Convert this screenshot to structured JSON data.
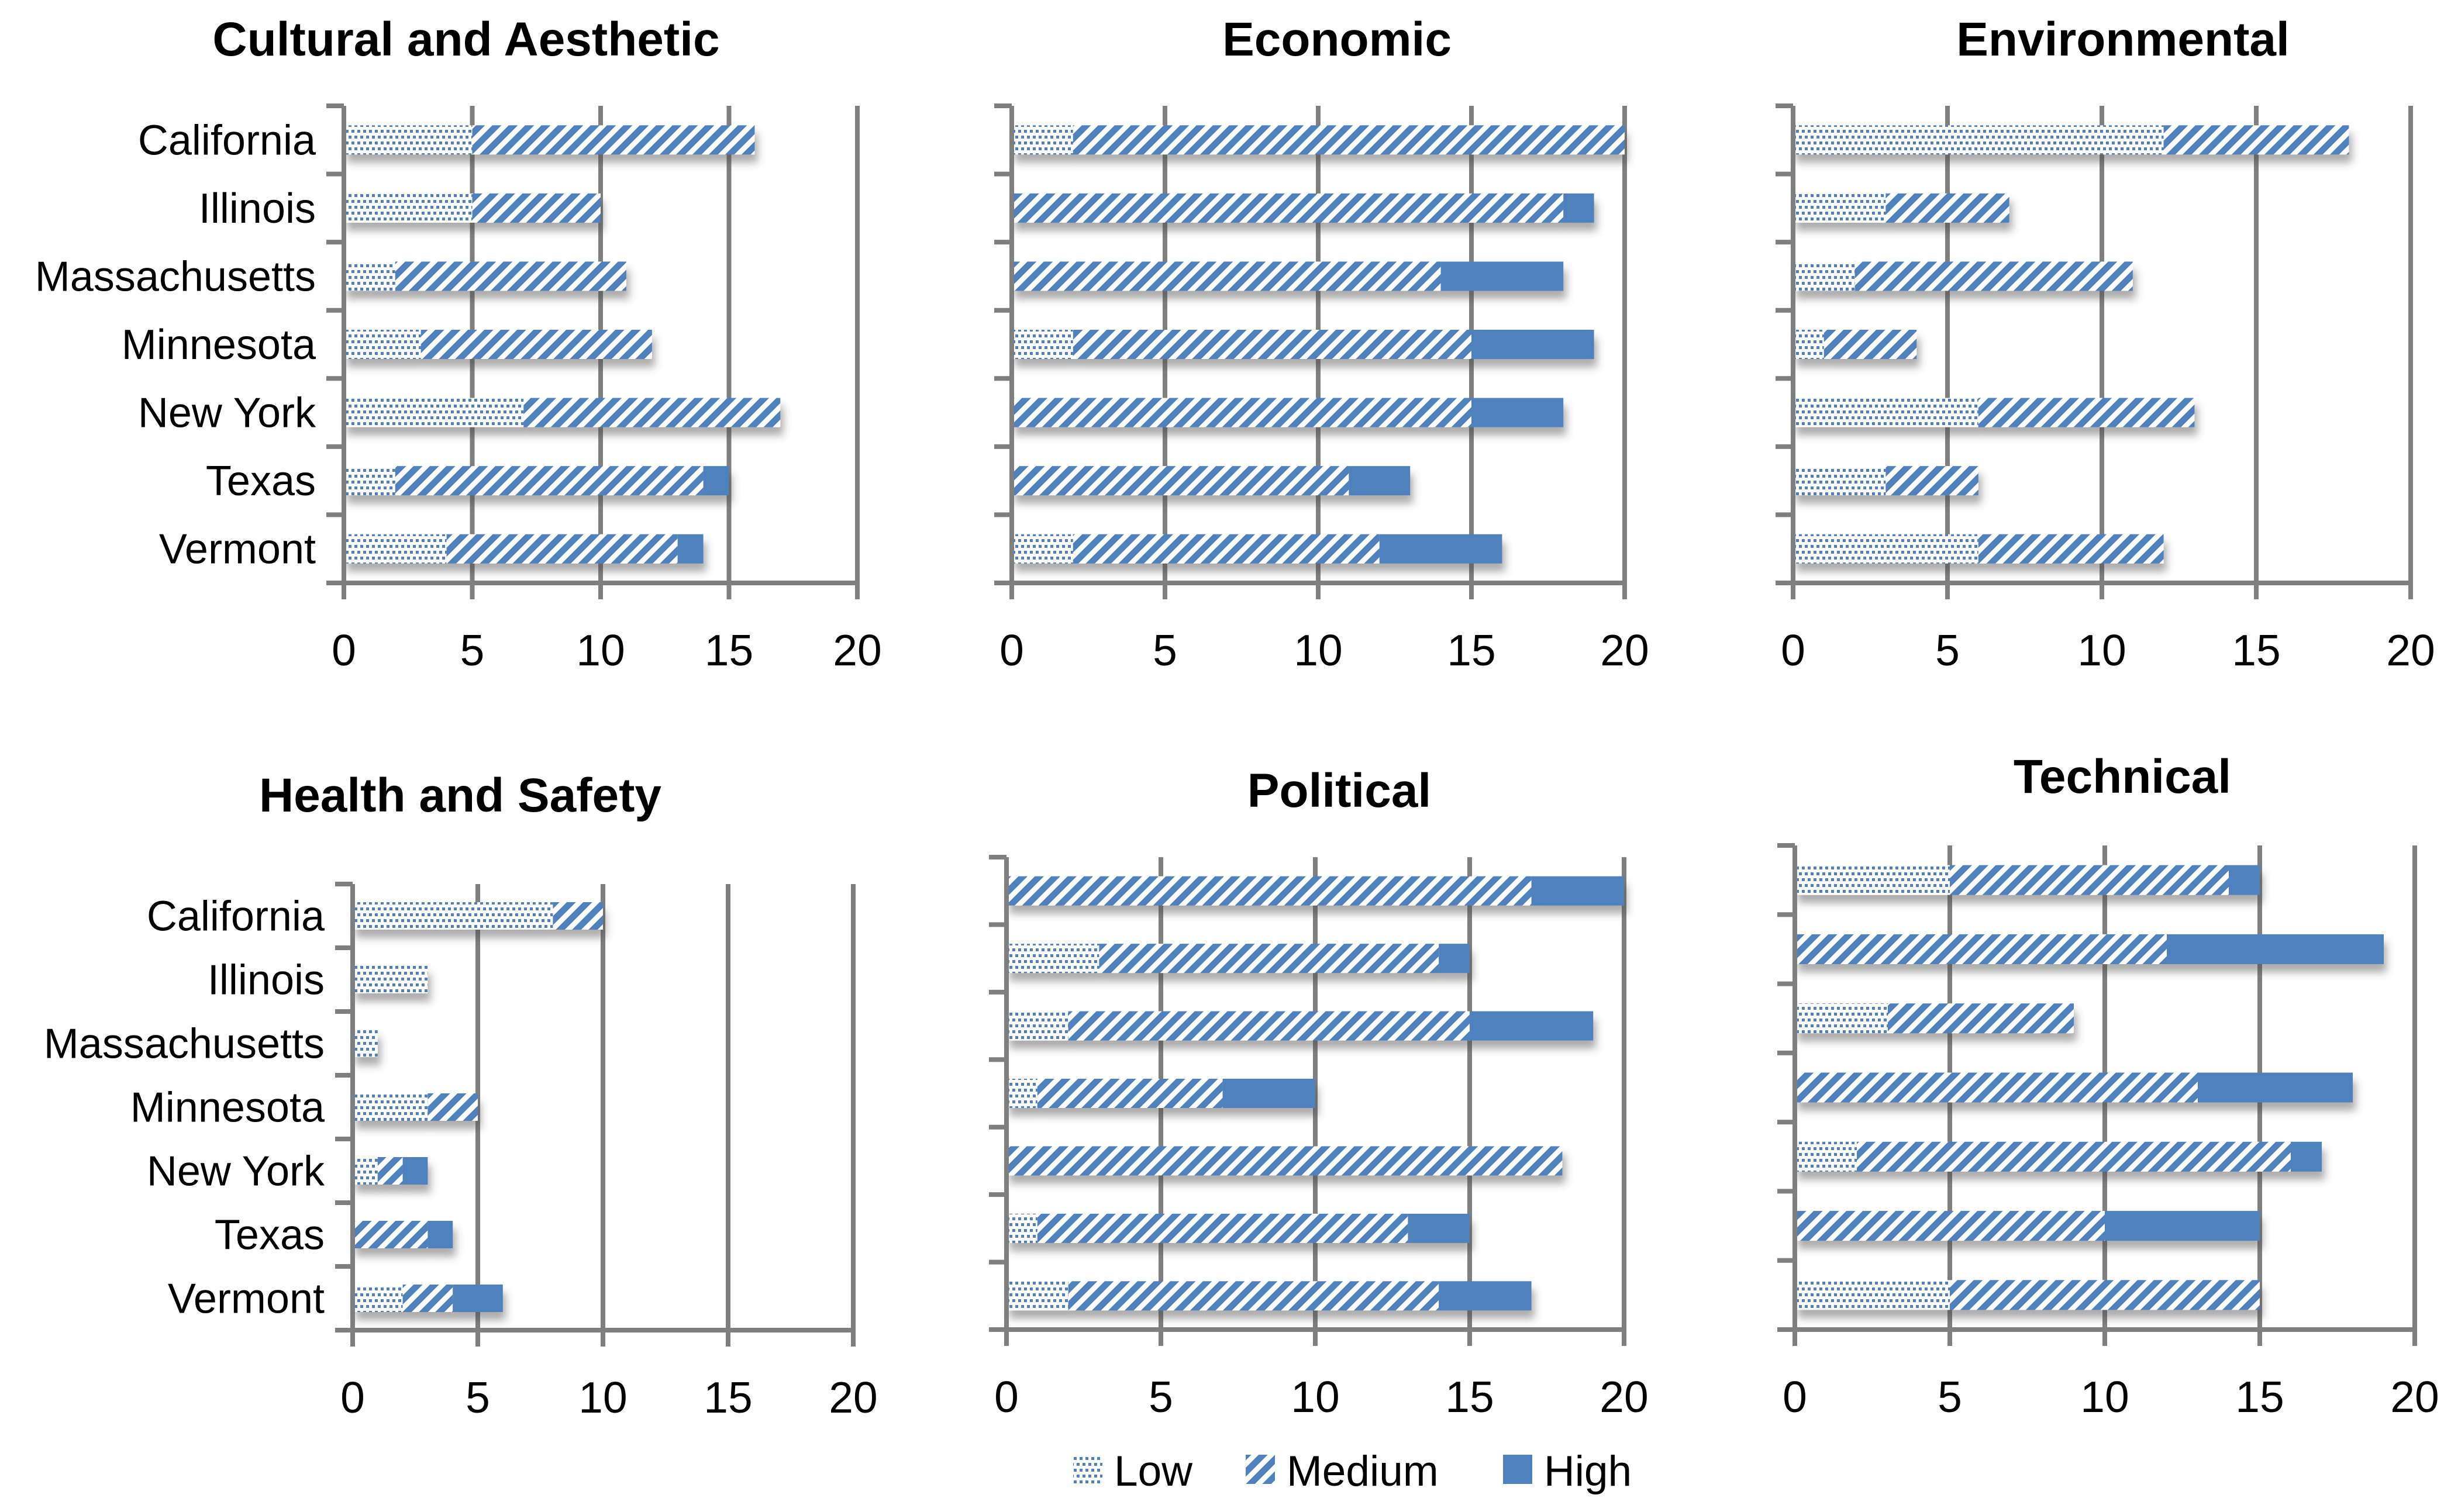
{
  "colors": {
    "bar_blue": "#4F81BD",
    "grid_gray": "#7F7F7F",
    "text_black": "#000000",
    "background": "#FFFFFF"
  },
  "axis": {
    "xlim": [
      0,
      20
    ],
    "ticks": [
      0,
      5,
      10,
      15,
      20
    ]
  },
  "legend": {
    "position": "bottom-center",
    "items": [
      {
        "label": "Low",
        "swatch": "dots-pattern-swatch"
      },
      {
        "label": "Medium",
        "swatch": "diagonal-stripes-swatch"
      },
      {
        "label": "High",
        "swatch": "solid-blue-swatch"
      }
    ]
  },
  "chart_data": [
    {
      "type": "bar",
      "subtype": "horizontal-stacked",
      "title": "Cultural and Aesthetic",
      "categories": [
        "California",
        "Illinois",
        "Massachusetts",
        "Minnesota",
        "New York",
        "Texas",
        "Vermont"
      ],
      "series": [
        {
          "name": "Low",
          "values": [
            5,
            5,
            2,
            3,
            7,
            2,
            4
          ]
        },
        {
          "name": "Medium",
          "values": [
            11,
            5,
            9,
            9,
            10,
            12,
            9
          ]
        },
        {
          "name": "High",
          "values": [
            0,
            0,
            0,
            0,
            0,
            1,
            1
          ]
        }
      ],
      "xlim": [
        0,
        20
      ],
      "xticks": [
        0,
        5,
        10,
        15,
        20
      ],
      "grid": "vertical"
    },
    {
      "type": "bar",
      "subtype": "horizontal-stacked",
      "title": "Economic",
      "categories": [
        "California",
        "Illinois",
        "Massachusetts",
        "Minnesota",
        "New York",
        "Texas",
        "Vermont"
      ],
      "series": [
        {
          "name": "Low",
          "values": [
            2,
            0,
            0,
            2,
            0,
            0,
            2
          ]
        },
        {
          "name": "Medium",
          "values": [
            18,
            18,
            14,
            13,
            15,
            11,
            10
          ]
        },
        {
          "name": "High",
          "values": [
            0,
            1,
            4,
            4,
            3,
            2,
            4
          ]
        }
      ],
      "xlim": [
        0,
        20
      ],
      "xticks": [
        0,
        5,
        10,
        15,
        20
      ],
      "grid": "vertical"
    },
    {
      "type": "bar",
      "subtype": "horizontal-stacked",
      "title": "Environmental",
      "categories": [
        "California",
        "Illinois",
        "Massachusetts",
        "Minnesota",
        "New York",
        "Texas",
        "Vermont"
      ],
      "series": [
        {
          "name": "Low",
          "values": [
            12,
            3,
            2,
            1,
            6,
            3,
            6
          ]
        },
        {
          "name": "Medium",
          "values": [
            6,
            4,
            9,
            3,
            7,
            3,
            6
          ]
        },
        {
          "name": "High",
          "values": [
            0,
            0,
            0,
            0,
            0,
            0,
            0
          ]
        }
      ],
      "xlim": [
        0,
        20
      ],
      "xticks": [
        0,
        5,
        10,
        15,
        20
      ],
      "grid": "vertical"
    },
    {
      "type": "bar",
      "subtype": "horizontal-stacked",
      "title": "Health and Safety",
      "categories": [
        "California",
        "Illinois",
        "Massachusetts",
        "Minnesota",
        "New York",
        "Texas",
        "Vermont"
      ],
      "series": [
        {
          "name": "Low",
          "values": [
            8,
            3,
            1,
            3,
            1,
            0,
            2
          ]
        },
        {
          "name": "Medium",
          "values": [
            2,
            0,
            0,
            2,
            1,
            3,
            2
          ]
        },
        {
          "name": "High",
          "values": [
            0,
            0,
            0,
            0,
            1,
            1,
            2
          ]
        }
      ],
      "xlim": [
        0,
        20
      ],
      "xticks": [
        0,
        5,
        10,
        15,
        20
      ],
      "grid": "vertical"
    },
    {
      "type": "bar",
      "subtype": "horizontal-stacked",
      "title": "Political",
      "categories": [
        "California",
        "Illinois",
        "Massachusetts",
        "Minnesota",
        "New York",
        "Texas",
        "Vermont"
      ],
      "series": [
        {
          "name": "Low",
          "values": [
            0,
            3,
            2,
            1,
            0,
            1,
            2
          ]
        },
        {
          "name": "Medium",
          "values": [
            17,
            11,
            13,
            6,
            18,
            12,
            12
          ]
        },
        {
          "name": "High",
          "values": [
            3,
            1,
            4,
            3,
            0,
            2,
            3
          ]
        }
      ],
      "xlim": [
        0,
        20
      ],
      "xticks": [
        0,
        5,
        10,
        15,
        20
      ],
      "grid": "vertical"
    },
    {
      "type": "bar",
      "subtype": "horizontal-stacked",
      "title": "Technical",
      "categories": [
        "California",
        "Illinois",
        "Massachusetts",
        "Minnesota",
        "New York",
        "Texas",
        "Vermont"
      ],
      "series": [
        {
          "name": "Low",
          "values": [
            5,
            0,
            3,
            0,
            2,
            0,
            5
          ]
        },
        {
          "name": "Medium",
          "values": [
            9,
            12,
            6,
            13,
            14,
            10,
            10
          ]
        },
        {
          "name": "High",
          "values": [
            1,
            7,
            0,
            5,
            1,
            5,
            0
          ]
        }
      ],
      "xlim": [
        0,
        20
      ],
      "xticks": [
        0,
        5,
        10,
        15,
        20
      ],
      "grid": "vertical"
    }
  ]
}
